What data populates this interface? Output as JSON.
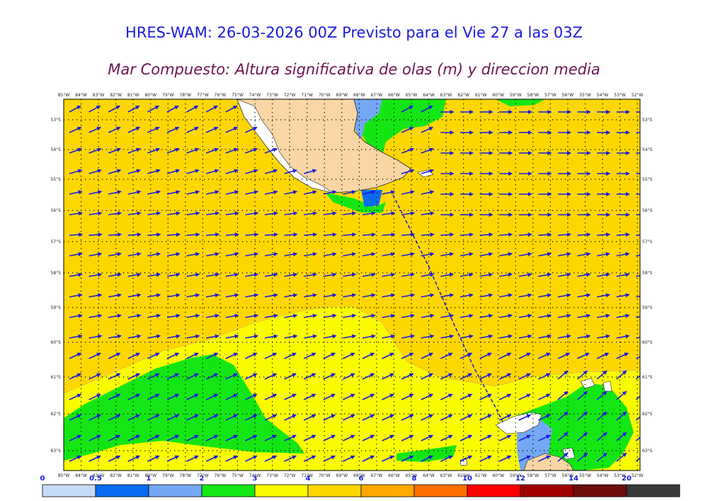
{
  "title": "HRES-WAM: 26-03-2026 00Z Previsto para el Vie 27 a las 03Z",
  "subtitle": "Mar Compuesto: Altura significativa de olas (m) y direccion media",
  "lon_labels": [
    "85°W",
    "84°W",
    "83°W",
    "82°W",
    "81°W",
    "80°W",
    "79°W",
    "78°W",
    "77°W",
    "76°W",
    "75°W",
    "74°W",
    "73°W",
    "72°W",
    "71°W",
    "70°W",
    "69°W",
    "68°W",
    "67°W",
    "66°W",
    "65°W",
    "64°W",
    "63°W",
    "62°W",
    "61°W",
    "60°W",
    "59°W",
    "58°W",
    "57°W",
    "56°W",
    "55°W",
    "54°W",
    "53°W",
    "52°W"
  ],
  "lat_labels": [
    "53°S",
    "54°S",
    "55°S",
    "56°S",
    "57°S",
    "58°S",
    "59°S",
    "60°S",
    "61°S",
    "62°S",
    "63°S"
  ],
  "legend": {
    "tick_labels": [
      "0",
      "0.5",
      "1",
      "2",
      "3",
      "4",
      "6",
      "8",
      "10",
      "12",
      "14",
      "20"
    ],
    "colors": [
      "#c6dcf6",
      "#0a6cf0",
      "#74a8f4",
      "#14e614",
      "#fafa00",
      "#ffd700",
      "#ffa800",
      "#ff7000",
      "#ff0000",
      "#a00000",
      "#6e0e0e",
      "#383838"
    ]
  },
  "map_colors": {
    "sea_low": "#ffd700",
    "sea_mid": "#fafa00",
    "sea_green": "#14e614",
    "sea_blue": "#74a8f4",
    "land": "#f9d6a4",
    "arrow": "#1a1adc"
  }
}
